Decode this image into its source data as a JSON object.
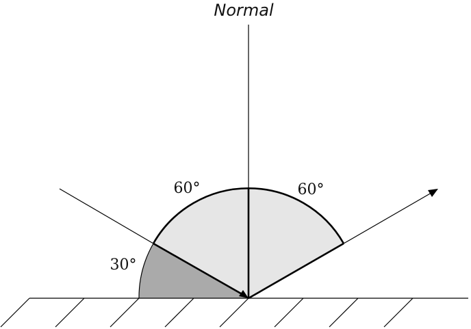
{
  "diagram": {
    "normal_label": "Normal",
    "angle_incident_label": "60°",
    "angle_reflected_label": "60°",
    "angle_glancing_label": "30°",
    "colors": {
      "light_sector": "#e6e6e6",
      "dark_sector": "#aaaaaa",
      "line": "#000000",
      "background": "#ffffff"
    }
  }
}
